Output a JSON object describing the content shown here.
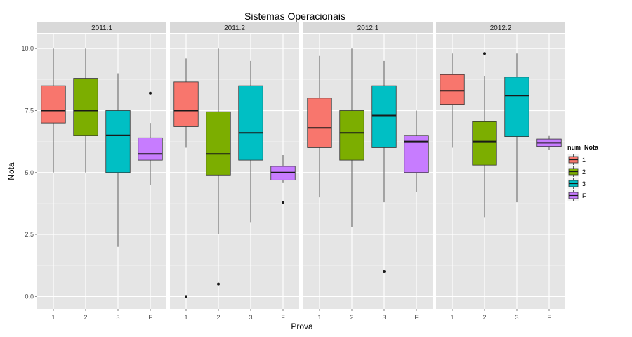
{
  "chart_data": {
    "type": "boxplot",
    "title": "Sistemas Operacionais",
    "xlabel": "Prova",
    "ylabel": "Nota",
    "ylim": [
      -0.5,
      10.6
    ],
    "yticks": [
      0.0,
      2.5,
      5.0,
      7.5,
      10.0
    ],
    "ytick_labels": [
      "0.0",
      "2.5",
      "5.0",
      "7.5",
      "10.0"
    ],
    "categories": [
      "1",
      "2",
      "3",
      "F"
    ],
    "grid": true,
    "legend": {
      "title": "num_Nota",
      "position": "right",
      "entries": [
        {
          "label": "1",
          "color": "#F8766D"
        },
        {
          "label": "2",
          "color": "#7CAE00"
        },
        {
          "label": "3",
          "color": "#00BFC4"
        },
        {
          "label": "F",
          "color": "#C77CFF"
        }
      ]
    },
    "panels": [
      {
        "name": "2011.1",
        "boxes": [
          {
            "category": "1",
            "min": 5.0,
            "q1": 7.0,
            "median": 7.5,
            "q3": 8.5,
            "max": 10.0,
            "outliers": []
          },
          {
            "category": "2",
            "min": 5.0,
            "q1": 6.5,
            "median": 7.5,
            "q3": 8.8,
            "max": 10.0,
            "outliers": []
          },
          {
            "category": "3",
            "min": 2.0,
            "q1": 5.0,
            "median": 6.5,
            "q3": 7.5,
            "max": 9.0,
            "outliers": []
          },
          {
            "category": "F",
            "min": 4.5,
            "q1": 5.5,
            "median": 5.75,
            "q3": 6.4,
            "max": 7.0,
            "outliers": [
              8.2
            ]
          }
        ]
      },
      {
        "name": "2011.2",
        "boxes": [
          {
            "category": "1",
            "min": 6.0,
            "q1": 6.85,
            "median": 7.5,
            "q3": 8.65,
            "max": 9.6,
            "outliers": [
              0.0
            ]
          },
          {
            "category": "2",
            "min": 2.5,
            "q1": 4.9,
            "median": 5.75,
            "q3": 7.45,
            "max": 10.0,
            "outliers": [
              0.5
            ]
          },
          {
            "category": "3",
            "min": 3.0,
            "q1": 5.5,
            "median": 6.6,
            "q3": 8.5,
            "max": 9.5,
            "outliers": []
          },
          {
            "category": "F",
            "min": 4.6,
            "q1": 4.7,
            "median": 5.0,
            "q3": 5.25,
            "max": 5.7,
            "outliers": [
              3.8
            ]
          }
        ]
      },
      {
        "name": "2012.1",
        "boxes": [
          {
            "category": "1",
            "min": 4.0,
            "q1": 6.0,
            "median": 6.8,
            "q3": 8.0,
            "max": 9.7,
            "outliers": []
          },
          {
            "category": "2",
            "min": 2.8,
            "q1": 5.5,
            "median": 6.6,
            "q3": 7.5,
            "max": 10.0,
            "outliers": []
          },
          {
            "category": "3",
            "min": 3.8,
            "q1": 6.0,
            "median": 7.3,
            "q3": 8.5,
            "max": 9.5,
            "outliers": [
              1.0
            ]
          },
          {
            "category": "F",
            "min": 4.2,
            "q1": 5.0,
            "median": 6.25,
            "q3": 6.5,
            "max": 7.5,
            "outliers": []
          }
        ]
      },
      {
        "name": "2012.2",
        "boxes": [
          {
            "category": "1",
            "min": 6.0,
            "q1": 7.75,
            "median": 8.3,
            "q3": 8.95,
            "max": 9.8,
            "outliers": []
          },
          {
            "category": "2",
            "min": 3.2,
            "q1": 5.3,
            "median": 6.25,
            "q3": 7.05,
            "max": 8.9,
            "outliers": [
              9.8
            ]
          },
          {
            "category": "3",
            "min": 3.8,
            "q1": 6.45,
            "median": 8.1,
            "q3": 8.85,
            "max": 9.8,
            "outliers": []
          },
          {
            "category": "F",
            "min": 5.9,
            "q1": 6.05,
            "median": 6.2,
            "q3": 6.35,
            "max": 6.5,
            "outliers": []
          }
        ]
      }
    ]
  }
}
